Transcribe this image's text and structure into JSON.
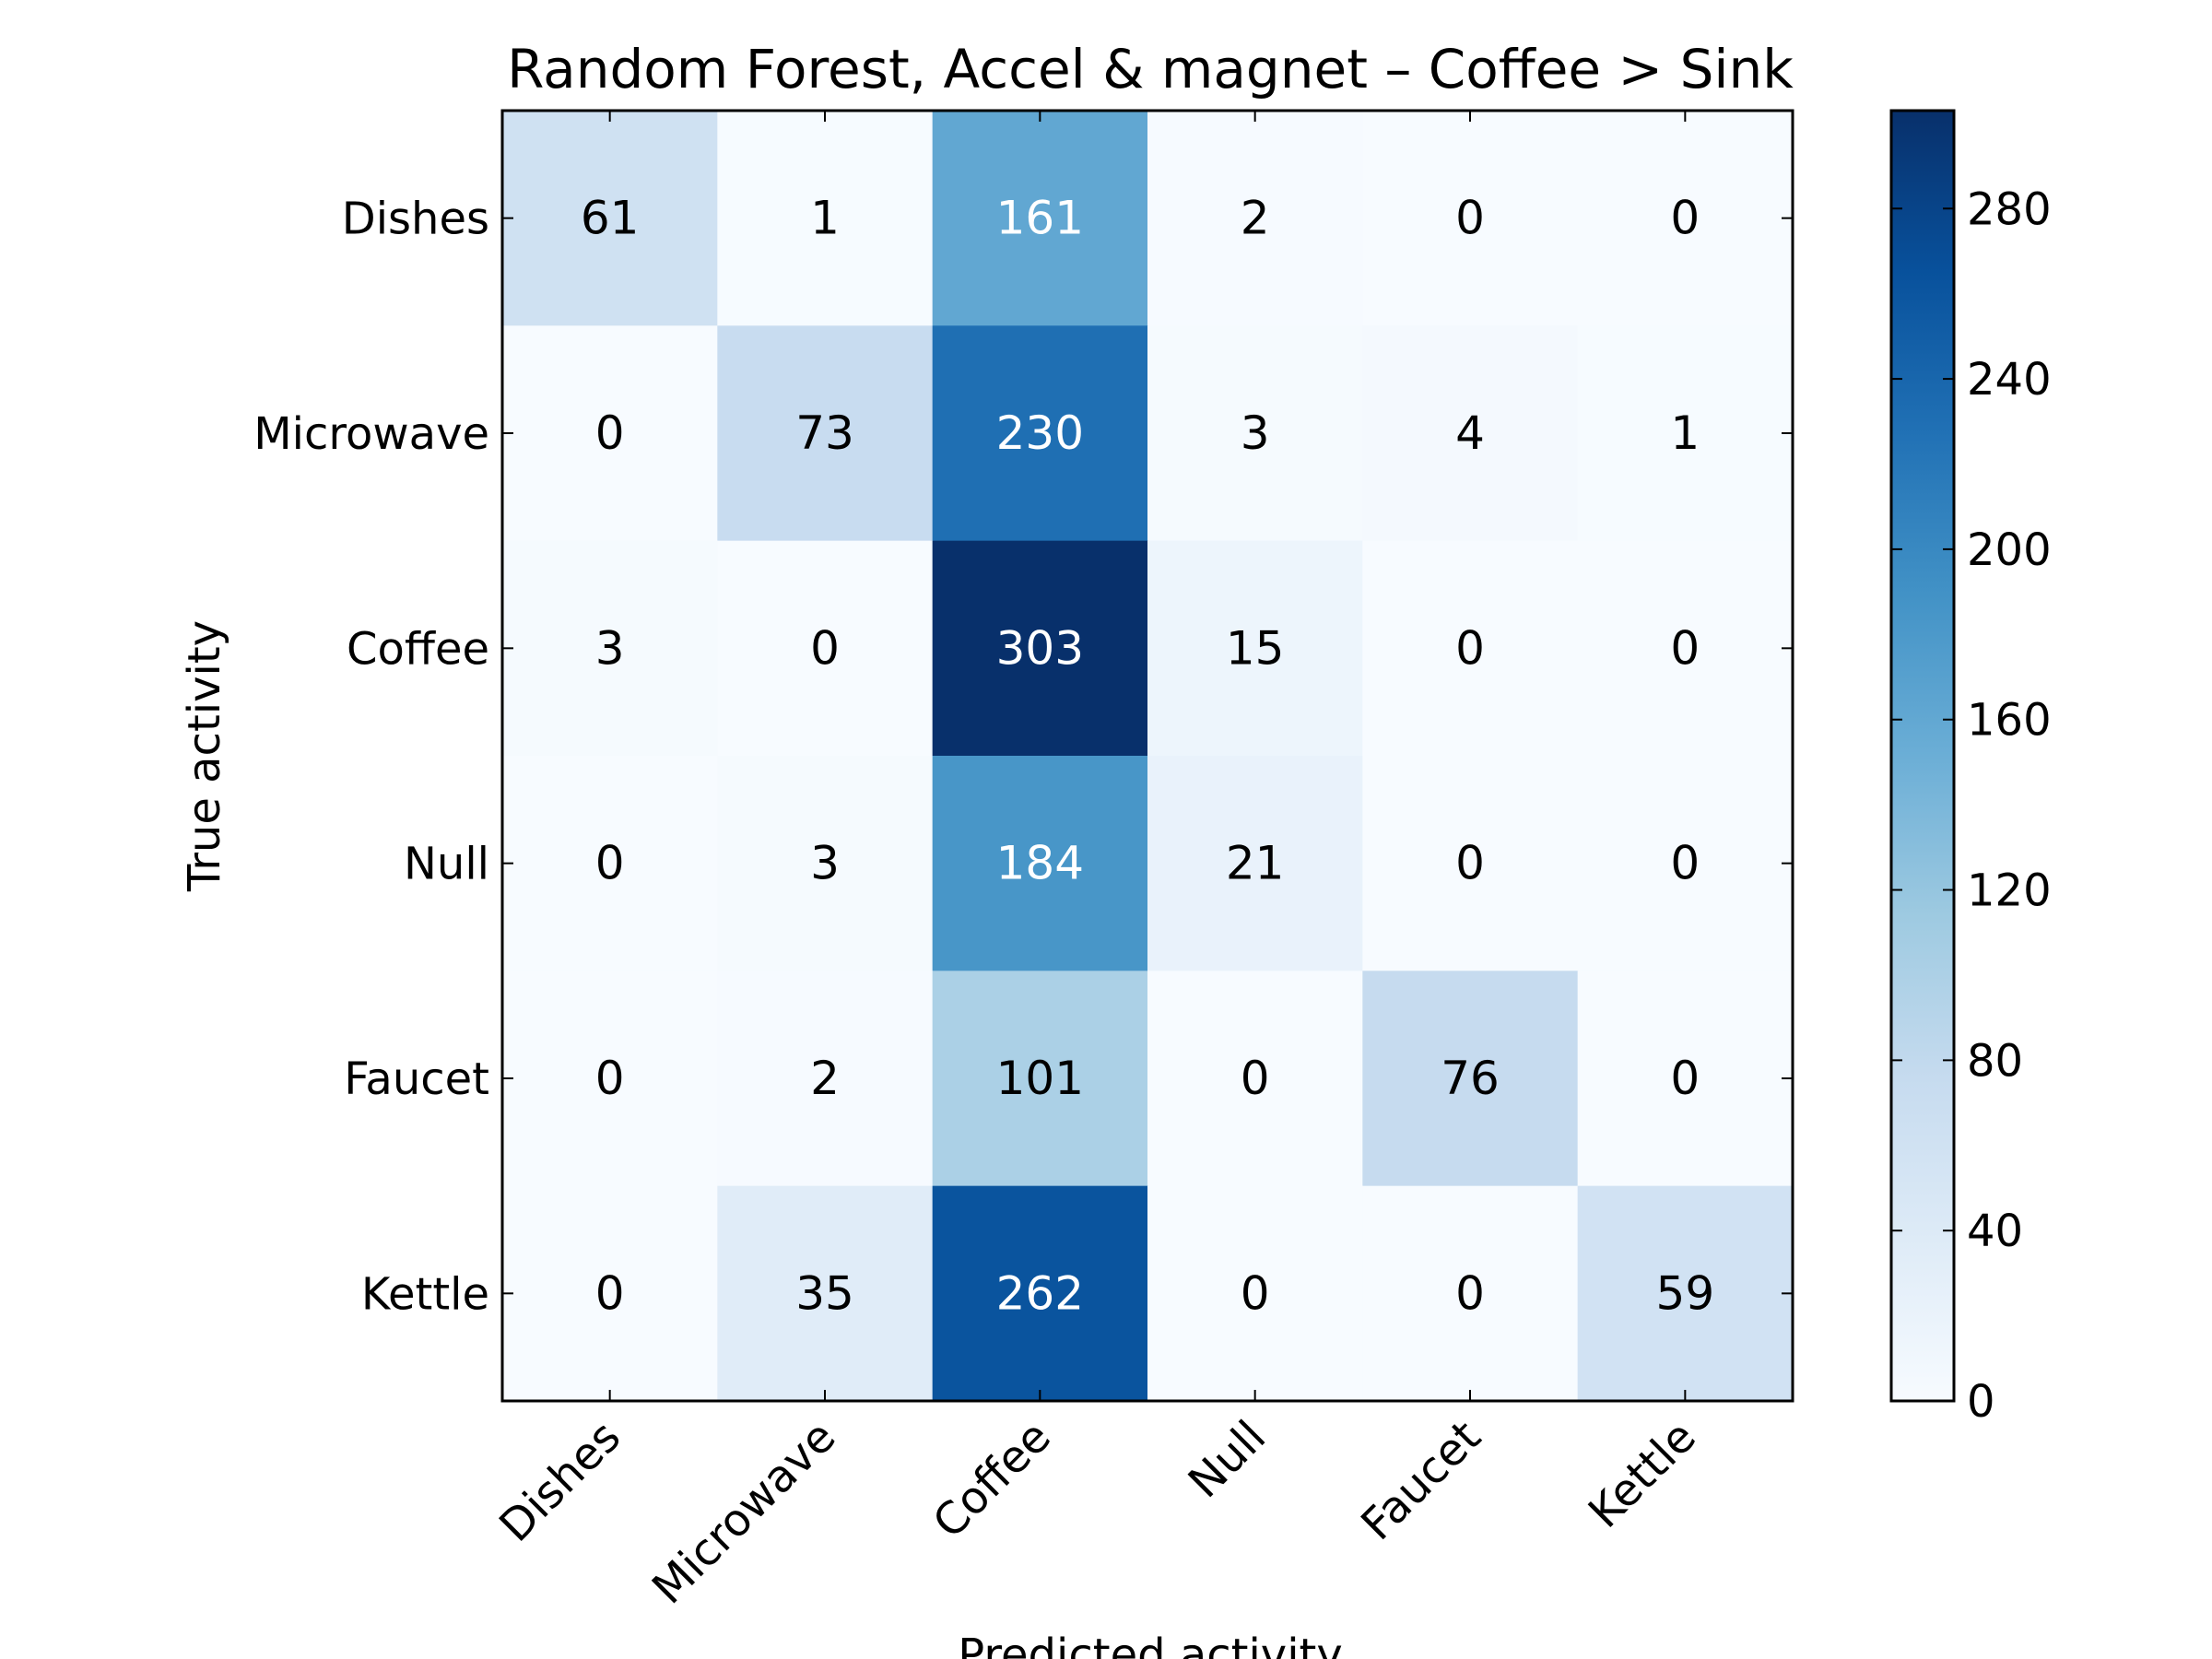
{
  "chart_data": {
    "type": "heatmap",
    "title": "Random Forest, Accel & magnet – Coffee > Sink",
    "xlabel": "Predicted activity",
    "ylabel": "True activity",
    "x_categories": [
      "Dishes",
      "Microwave",
      "Coffee",
      "Null",
      "Faucet",
      "Kettle"
    ],
    "y_categories": [
      "Dishes",
      "Microwave",
      "Coffee",
      "Null",
      "Faucet",
      "Kettle"
    ],
    "values": [
      [
        61,
        1,
        161,
        2,
        0,
        0
      ],
      [
        0,
        73,
        230,
        3,
        4,
        1
      ],
      [
        3,
        0,
        303,
        15,
        0,
        0
      ],
      [
        0,
        3,
        184,
        21,
        0,
        0
      ],
      [
        0,
        2,
        101,
        0,
        76,
        0
      ],
      [
        0,
        35,
        262,
        0,
        0,
        59
      ]
    ],
    "colorbar": {
      "colormap": "Blues",
      "range": [
        0,
        303
      ],
      "ticks": [
        "0",
        "40",
        "80",
        "120",
        "160",
        "200",
        "240",
        "280"
      ]
    },
    "grid": false
  }
}
